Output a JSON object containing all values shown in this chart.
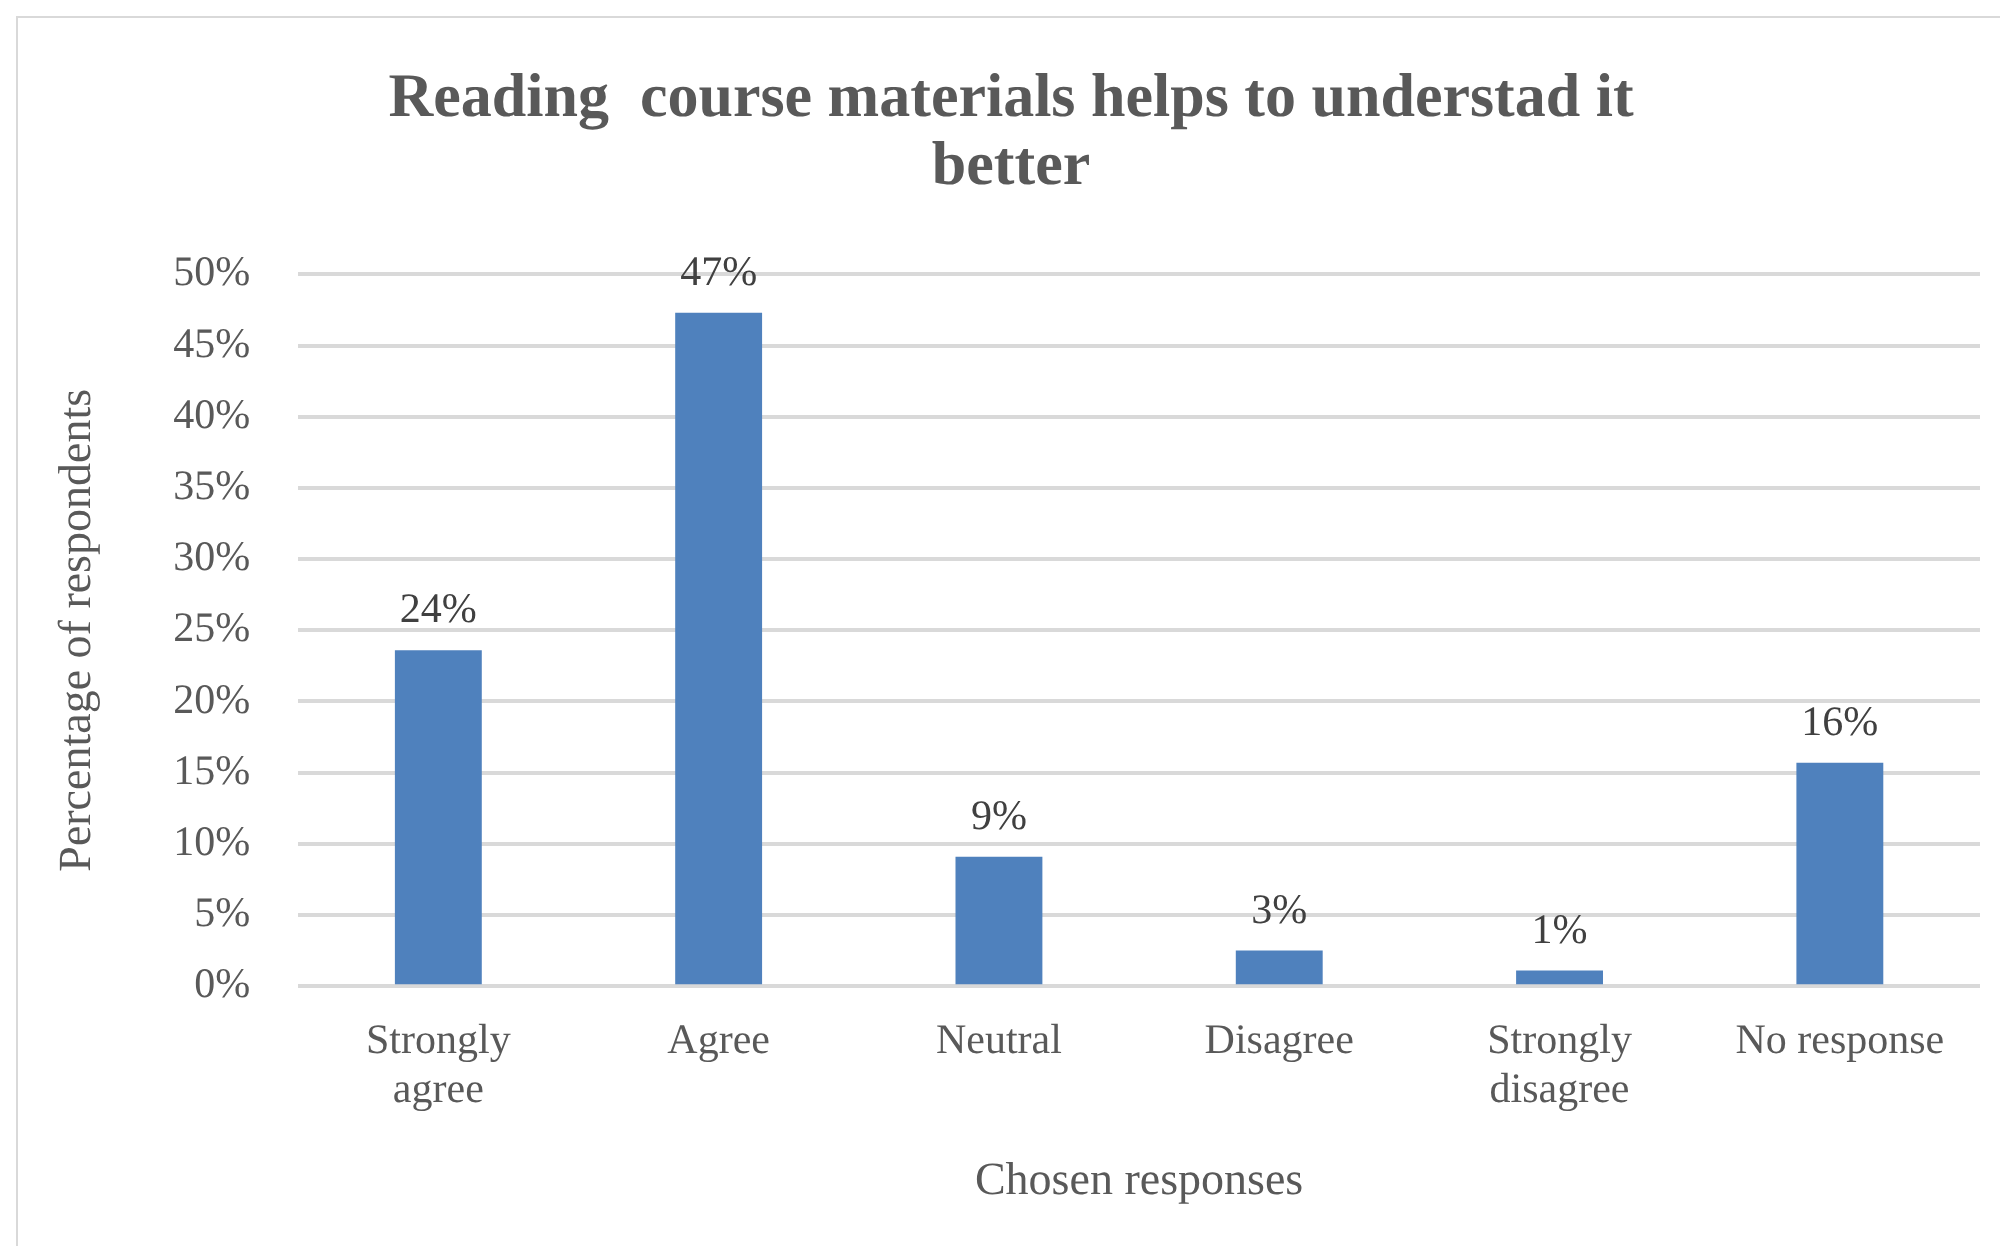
{
  "chart_data": {
    "type": "bar",
    "title": "Reading  course materials helps to understad it better",
    "xlabel": "Chosen responses",
    "ylabel": "Percentage of respondents",
    "categories": [
      "Strongly agree",
      "Agree",
      "Neutral",
      "Disagree",
      "Strongly disagree",
      "No response"
    ],
    "values": [
      23.6,
      47.3,
      9.1,
      2.5,
      1.1,
      15.7
    ],
    "value_labels": [
      "24%",
      "47%",
      "9%",
      "3%",
      "1%",
      "16%"
    ],
    "color": "#4f81bd",
    "ylim": [
      0,
      50
    ],
    "yticks": [
      {
        "value": 0,
        "label": "0%"
      },
      {
        "value": 5,
        "label": "5%"
      },
      {
        "value": 10,
        "label": "10%"
      },
      {
        "value": 15,
        "label": "15%"
      },
      {
        "value": 20,
        "label": "20%"
      },
      {
        "value": 25,
        "label": "25%"
      },
      {
        "value": 30,
        "label": "30%"
      },
      {
        "value": 35,
        "label": "35%"
      },
      {
        "value": 40,
        "label": "40%"
      },
      {
        "value": 45,
        "label": "45%"
      },
      {
        "value": 50,
        "label": "50%"
      }
    ],
    "grid": "y",
    "legend": false
  }
}
